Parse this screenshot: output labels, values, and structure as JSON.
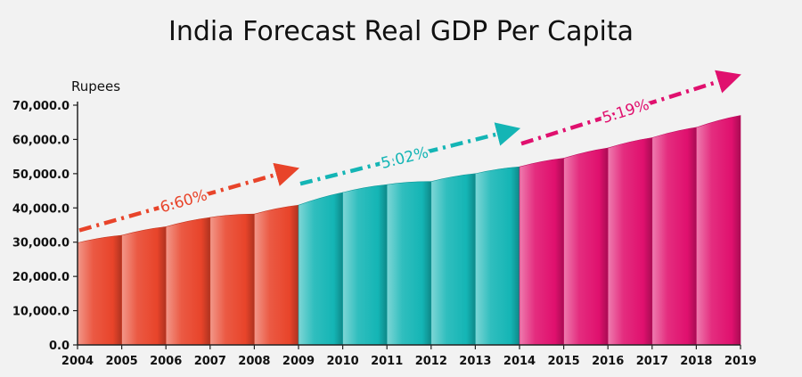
{
  "chart_data": {
    "type": "area",
    "title": "India Forecast Real GDP Per Capita",
    "ylabel": "Rupees",
    "xlabel": "",
    "ylim": [
      0,
      70000
    ],
    "y_ticks": [
      "0.0",
      "10,000.0",
      "20,000.0",
      "30,000.0",
      "40,000.0",
      "50,000.0",
      "60,000.0",
      "70,000.0"
    ],
    "y_tick_values": [
      0,
      10000,
      20000,
      30000,
      40000,
      50000,
      60000,
      70000
    ],
    "x": [
      "2004",
      "2005",
      "2006",
      "2007",
      "2008",
      "2009",
      "2010",
      "2011",
      "2012",
      "2013",
      "2014",
      "2015",
      "2016",
      "2017",
      "2018",
      "2019"
    ],
    "values": [
      29800,
      32000,
      34500,
      37200,
      38200,
      40800,
      44500,
      46800,
      47700,
      50000,
      52000,
      54500,
      57500,
      60500,
      63500,
      67000
    ],
    "segments": [
      {
        "from": "2004",
        "to": "2009",
        "color": "#e8442a",
        "growth_label": "6.60%"
      },
      {
        "from": "2009",
        "to": "2014",
        "color": "#14b5b5",
        "growth_label": "5.02%"
      },
      {
        "from": "2014",
        "to": "2019",
        "color": "#e0106e",
        "growth_label": "5.19%"
      }
    ],
    "grid": false
  }
}
